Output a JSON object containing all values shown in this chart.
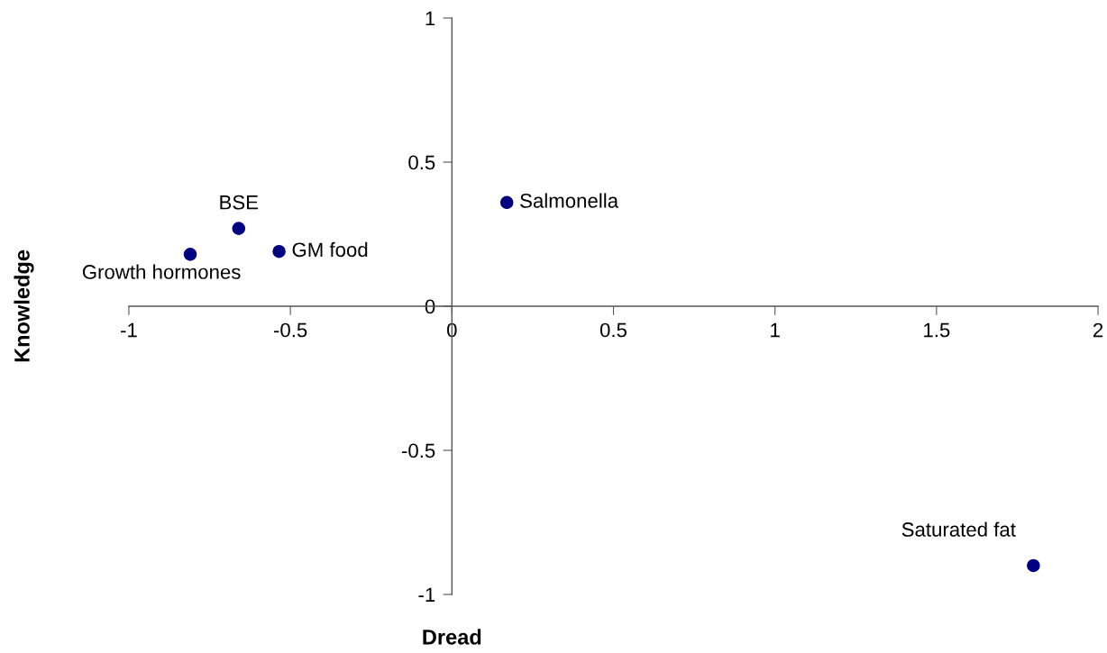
{
  "chart_data": {
    "type": "scatter",
    "xlabel": "Dread",
    "ylabel": "Knowledge",
    "x": [
      -0.81,
      -0.66,
      -0.535,
      0.17,
      1.8
    ],
    "series": [
      {
        "color": "#000080",
        "values": [
          0.18,
          0.27,
          0.19,
          0.36,
          -0.9
        ]
      }
    ],
    "annotations": [
      {
        "text": "Growth hormones",
        "x": -0.81,
        "y": 0.18
      },
      {
        "text": "BSE",
        "x": -0.66,
        "y": 0.27
      },
      {
        "text": "GM food",
        "x": -0.535,
        "y": 0.19
      },
      {
        "text": "Salmonella",
        "x": 0.17,
        "y": 0.36
      },
      {
        "text": "Saturated fat",
        "x": 1.8,
        "y": -0.9
      }
    ],
    "xlim": [
      -1,
      2
    ],
    "ylim": [
      -1,
      1
    ],
    "xticks": [
      -1,
      -0.5,
      0,
      0.5,
      1,
      1.5,
      2
    ],
    "yticks": [
      -1,
      -0.5,
      0,
      0.5,
      1
    ],
    "marker": "circle",
    "grid": false,
    "legend": false
  }
}
